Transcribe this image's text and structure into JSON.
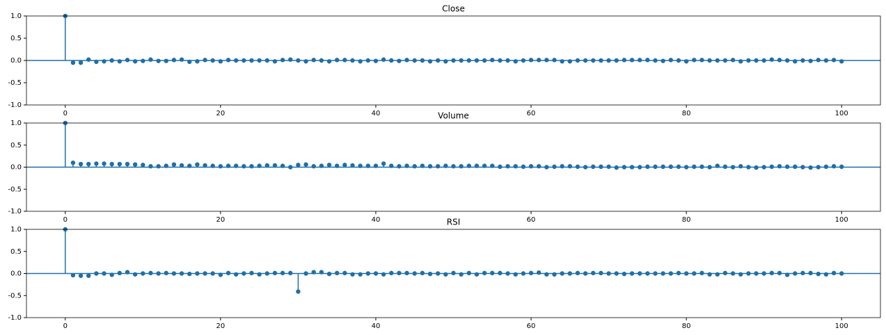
{
  "chart_data": [
    {
      "type": "stem",
      "title": "Close",
      "color": "#1f6fa8",
      "x": [
        0,
        1,
        2,
        3,
        4,
        5,
        6,
        7,
        8,
        9,
        10,
        11,
        12,
        13,
        14,
        15,
        16,
        17,
        18,
        19,
        20,
        21,
        22,
        23,
        24,
        25,
        26,
        27,
        28,
        29,
        30,
        31,
        32,
        33,
        34,
        35,
        36,
        37,
        38,
        39,
        40,
        41,
        42,
        43,
        44,
        45,
        46,
        47,
        48,
        49,
        50,
        51,
        52,
        53,
        54,
        55,
        56,
        57,
        58,
        59,
        60,
        61,
        62,
        63,
        64,
        65,
        66,
        67,
        68,
        69,
        70,
        71,
        72,
        73,
        74,
        75,
        76,
        77,
        78,
        79,
        80,
        81,
        82,
        83,
        84,
        85,
        86,
        87,
        88,
        89,
        90,
        91,
        92,
        93,
        94,
        95,
        96,
        97,
        98,
        99,
        100
      ],
      "values": [
        1,
        -0.05,
        -0.05,
        0.02,
        -0.03,
        -0.02,
        0,
        -0.02,
        0.01,
        -0.02,
        -0.01,
        0.02,
        -0.01,
        -0.01,
        0.01,
        0.02,
        -0.03,
        -0.02,
        0.01,
        0,
        -0.02,
        0.01,
        0,
        0,
        0,
        0,
        0,
        -0.02,
        0.01,
        0.02,
        0,
        -0.02,
        0.01,
        0,
        -0.02,
        0.01,
        0.01,
        0,
        -0.02,
        0,
        -0.01,
        0.02,
        0,
        -0.01,
        0.01,
        0,
        0,
        -0.02,
        0,
        -0.02,
        0,
        0,
        0,
        0,
        0,
        0.01,
        0,
        0,
        -0.02,
        0,
        0.01,
        0.01,
        0.01,
        0.01,
        -0.02,
        -0.02,
        0,
        0,
        0,
        0,
        0,
        0,
        0.01,
        0.01,
        0.01,
        0.01,
        0,
        -0.01,
        0.01,
        0,
        -0.02,
        0.01,
        0.01,
        0,
        0,
        0,
        0.01,
        -0.02,
        0,
        0,
        0,
        0.02,
        0.01,
        0,
        -0.02,
        0,
        -0.01,
        0.01,
        0,
        0.01,
        -0.02
      ],
      "xlim": [
        -5,
        105
      ],
      "xticks": [
        0,
        20,
        40,
        60,
        80,
        100
      ],
      "ylim": [
        -1,
        1
      ],
      "yticks": [
        {
          "value": -1,
          "label": "-1.0"
        },
        -0.5,
        {
          "value": 0,
          "label": "0.0"
        },
        0.5,
        {
          "value": 1,
          "label": "1.0"
        }
      ]
    },
    {
      "type": "stem",
      "title": "Volume",
      "color": "#1f6fa8",
      "x": [
        0,
        1,
        2,
        3,
        4,
        5,
        6,
        7,
        8,
        9,
        10,
        11,
        12,
        13,
        14,
        15,
        16,
        17,
        18,
        19,
        20,
        21,
        22,
        23,
        24,
        25,
        26,
        27,
        28,
        29,
        30,
        31,
        32,
        33,
        34,
        35,
        36,
        37,
        38,
        39,
        40,
        41,
        42,
        43,
        44,
        45,
        46,
        47,
        48,
        49,
        50,
        51,
        52,
        53,
        54,
        55,
        56,
        57,
        58,
        59,
        60,
        61,
        62,
        63,
        64,
        65,
        66,
        67,
        68,
        69,
        70,
        71,
        72,
        73,
        74,
        75,
        76,
        77,
        78,
        79,
        80,
        81,
        82,
        83,
        84,
        85,
        86,
        87,
        88,
        89,
        90,
        91,
        92,
        93,
        94,
        95,
        96,
        97,
        98,
        99,
        100
      ],
      "values": [
        1,
        0.1,
        0.07,
        0.07,
        0.08,
        0.08,
        0.07,
        0.07,
        0.07,
        0.06,
        0.05,
        0.02,
        0.02,
        0.03,
        0.06,
        0.04,
        0.03,
        0.06,
        0.04,
        0.03,
        0.02,
        0.03,
        0.03,
        0.02,
        0.02,
        0.03,
        0.04,
        0.04,
        0.03,
        0,
        0.05,
        0.06,
        0.02,
        0.03,
        0.05,
        0.03,
        0.05,
        0.04,
        0.03,
        0.03,
        0.03,
        0.08,
        0.03,
        0.02,
        0.03,
        0.02,
        0.03,
        0.02,
        0.02,
        0.03,
        0.02,
        0.02,
        0.03,
        0.03,
        0.03,
        0.03,
        0.01,
        0.02,
        0.02,
        0.01,
        0.02,
        0.02,
        0,
        0.01,
        0.02,
        0.02,
        0.01,
        0,
        0.01,
        0.01,
        0.01,
        -0.01,
        0,
        0,
        0,
        0.01,
        0.01,
        0.01,
        0.01,
        0.01,
        0,
        0.01,
        0.01,
        0,
        0.03,
        0.01,
        0,
        0.02,
        0,
        -0.01,
        0,
        0.01,
        0.02,
        0.01,
        0.01,
        0,
        -0.01,
        0,
        0.01,
        0.02,
        0.01
      ],
      "xlim": [
        -5,
        105
      ],
      "xticks": [
        0,
        20,
        40,
        60,
        80,
        100
      ],
      "ylim": [
        -1,
        1
      ],
      "yticks": [
        {
          "value": -1,
          "label": "-1.0"
        },
        -0.5,
        {
          "value": 0,
          "label": "0.0"
        },
        0.5,
        {
          "value": 1,
          "label": "1.0"
        }
      ]
    },
    {
      "type": "stem",
      "title": "RSI",
      "color": "#1f6fa8",
      "x": [
        0,
        1,
        2,
        3,
        4,
        5,
        6,
        7,
        8,
        9,
        10,
        11,
        12,
        13,
        14,
        15,
        16,
        17,
        18,
        19,
        20,
        21,
        22,
        23,
        24,
        25,
        26,
        27,
        28,
        29,
        30,
        31,
        32,
        33,
        34,
        35,
        36,
        37,
        38,
        39,
        40,
        41,
        42,
        43,
        44,
        45,
        46,
        47,
        48,
        49,
        50,
        51,
        52,
        53,
        54,
        55,
        56,
        57,
        58,
        59,
        60,
        61,
        62,
        63,
        64,
        65,
        66,
        67,
        68,
        69,
        70,
        71,
        72,
        73,
        74,
        75,
        76,
        77,
        78,
        79,
        80,
        81,
        82,
        83,
        84,
        85,
        86,
        87,
        88,
        89,
        90,
        91,
        92,
        93,
        94,
        95,
        96,
        97,
        98,
        99,
        100
      ],
      "values": [
        1,
        -0.04,
        -0.05,
        -0.05,
        0,
        0,
        -0.03,
        0.01,
        0.03,
        -0.02,
        0,
        0.01,
        0,
        0.01,
        0,
        0,
        -0.01,
        0,
        0,
        0,
        -0.03,
        0.01,
        -0.02,
        0,
        0.01,
        -0.02,
        0,
        0.01,
        0.01,
        0.01,
        -0.41,
        0,
        0.03,
        0.03,
        -0.01,
        0.01,
        0.01,
        -0.02,
        -0.02,
        0,
        0,
        -0.02,
        0.01,
        0.01,
        0.01,
        0,
        0.01,
        -0.01,
        0,
        -0.02,
        0.01,
        -0.02,
        0.01,
        -0.02,
        0.01,
        0.01,
        0.01,
        0,
        -0.02,
        0,
        0.01,
        0.02,
        -0.02,
        -0.02,
        0,
        0,
        0.01,
        0,
        0.01,
        0.01,
        0,
        0,
        -0.01,
        0,
        0,
        0,
        0,
        0,
        0,
        0.01,
        0,
        0,
        0.01,
        -0.02,
        -0.02,
        0.01,
        0,
        -0.02,
        0,
        0,
        0,
        0.01,
        0.01,
        -0.03,
        0,
        0.01,
        0.01,
        -0.01,
        -0.02,
        0.01,
        0
      ],
      "xlim": [
        -5,
        105
      ],
      "xticks": [
        0,
        20,
        40,
        60,
        80,
        100
      ],
      "ylim": [
        -1,
        1
      ],
      "yticks": [
        {
          "value": -1,
          "label": "-1.0"
        },
        -0.5,
        {
          "value": 0,
          "label": "0.0"
        },
        0.5,
        {
          "value": 1,
          "label": "1.0"
        }
      ]
    }
  ]
}
